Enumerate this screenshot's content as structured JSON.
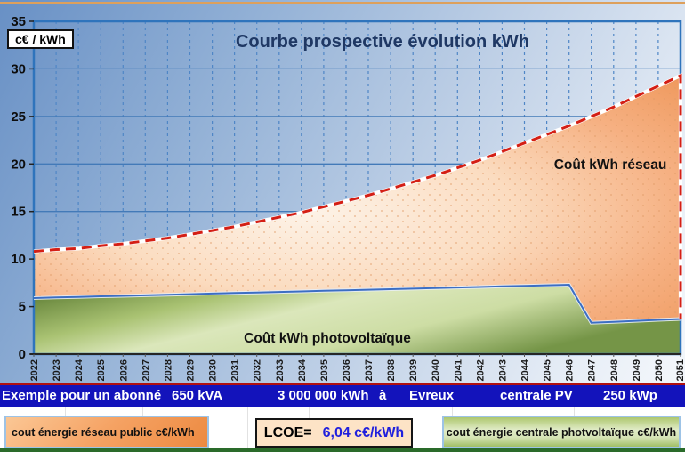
{
  "chart_data": {
    "type": "area",
    "title": "Courbe prospective évolution kWh",
    "unit_label": "c€ / kWh",
    "xlabel": "",
    "ylabel": "c€ / kWh",
    "ylim": [
      0,
      35
    ],
    "ytick_step": 5,
    "grid": {
      "horizontal": "solid",
      "vertical": "dashed"
    },
    "legend_position": "none (labels drawn inside areas)",
    "categories": [
      "2022",
      "2023",
      "2024",
      "2025",
      "2026",
      "2027",
      "2028",
      "2029",
      "2030",
      "2031",
      "2032",
      "2033",
      "2034",
      "2035",
      "2036",
      "2037",
      "2038",
      "2039",
      "2040",
      "2041",
      "2042",
      "2043",
      "2044",
      "2045",
      "2046",
      "2047",
      "2048",
      "2049",
      "2050",
      "2051"
    ],
    "series": [
      {
        "name": "Coût kWh réseau",
        "area_label": "Coût kWh réseau",
        "style": "orange area with red dashed top border",
        "values": [
          10.8,
          11.0,
          11.1,
          11.4,
          11.6,
          11.9,
          12.2,
          12.6,
          13.0,
          13.4,
          13.9,
          14.4,
          14.9,
          15.5,
          16.1,
          16.7,
          17.4,
          18.1,
          18.8,
          19.6,
          20.4,
          21.3,
          22.2,
          23.1,
          24.0,
          25.0,
          26.0,
          27.1,
          28.2,
          29.3
        ]
      },
      {
        "name": "Coût kWh photovoltaïque",
        "area_label": "Coût kWh photovoltaïque",
        "style": "green area with blue top border",
        "values": [
          5.9,
          5.96,
          6.02,
          6.08,
          6.13,
          6.19,
          6.25,
          6.31,
          6.37,
          6.43,
          6.48,
          6.54,
          6.6,
          6.66,
          6.72,
          6.78,
          6.83,
          6.89,
          6.95,
          7.01,
          7.07,
          7.13,
          7.18,
          7.24,
          7.3,
          3.3,
          3.4,
          3.5,
          3.6,
          3.7
        ]
      }
    ]
  },
  "banner": {
    "items": [
      "Exemple pour un abonné",
      "650 kVA",
      "3 000 000 kWh",
      "à",
      "Evreux",
      "centrale PV",
      "250 kWp"
    ]
  },
  "legend": {
    "reseau_label": "cout énergie réseau public c€/kWh",
    "lcoe_label": "LCOE=",
    "lcoe_value": "6,04 c€/kWh",
    "pv_label": "cout énergie centrale photvoltaïque c€/kWh"
  },
  "colors": {
    "banner_blue": "#1313bb",
    "banner_red_line": "#b01010",
    "lcoe_value_blue": "#2020dd",
    "reseau_dashed_red": "#d41f15",
    "pv_line_blue": "#3c6ec4",
    "orange_fill": "#f5a263",
    "green_fill": "#a9c272",
    "plot_border_blue": "#2f74bc",
    "bottom_bar_green": "#2a6b2a"
  }
}
